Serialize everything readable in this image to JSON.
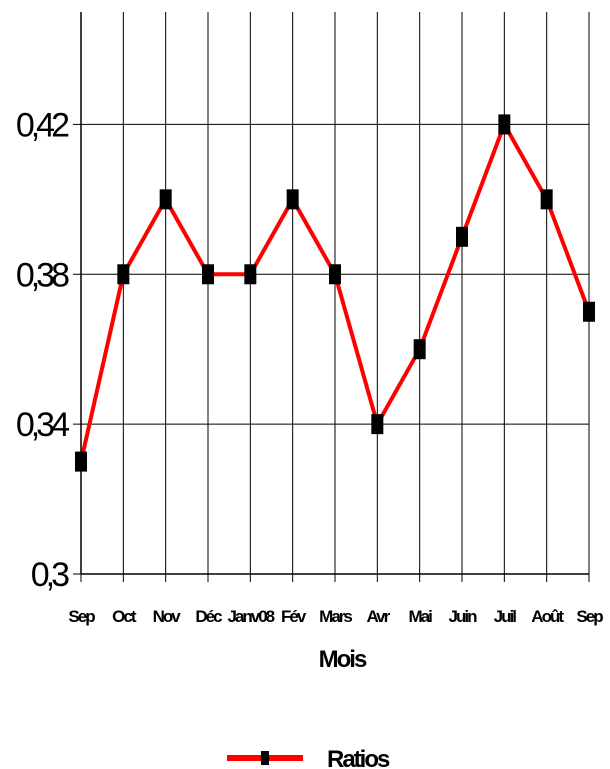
{
  "chart_data": {
    "type": "line",
    "title": "",
    "xlabel": "Mois",
    "ylabel": "",
    "categories": [
      "Sep",
      "Oct",
      "Nov",
      "Déc",
      "Janv08",
      "Fév",
      "Mars",
      "Avr",
      "Mai",
      "Juin",
      "Juil",
      "Août",
      "Sep"
    ],
    "category_labels": [
      "Sep",
      "Oct",
      "Nov",
      "Déc",
      "Janv08",
      "Fév",
      "Mars",
      "Avr",
      "Mai",
      "Juin",
      "Juil",
      "Août",
      "Sep"
    ],
    "series": [
      {
        "name": "Ratios",
        "values": [
          0.33,
          0.38,
          0.4,
          0.38,
          0.38,
          0.4,
          0.38,
          0.34,
          0.36,
          0.39,
          0.42,
          0.4,
          0.37
        ],
        "line_color": "#ff0000",
        "marker_color": "#000000"
      }
    ],
    "ylim": [
      0.3,
      0.45
    ],
    "yticks": [
      0.3,
      0.34,
      0.38,
      0.42
    ],
    "ytick_labels": [
      "0,3",
      "0,34",
      "0,38",
      "0,42"
    ],
    "grid": true,
    "legend_position": "bottom"
  }
}
